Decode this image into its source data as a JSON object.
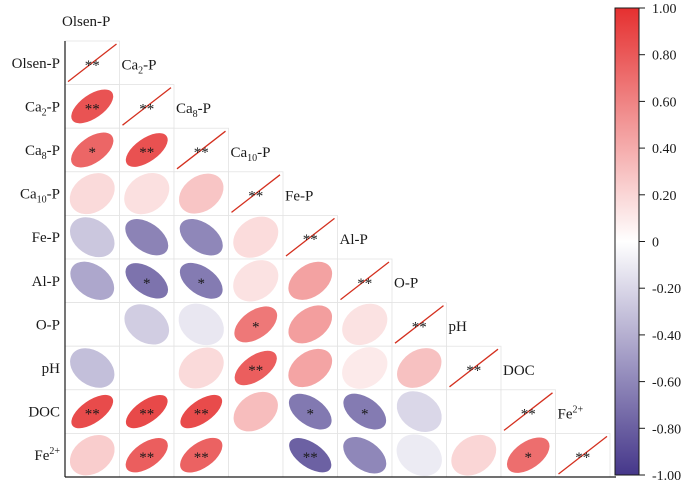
{
  "chart_data": {
    "type": "heatmap",
    "title": "",
    "variables": [
      {
        "label": "Olsen-P",
        "base": "Olsen-P",
        "sub": "",
        "sup": ""
      },
      {
        "label": "Ca2-P",
        "base": "Ca",
        "sub": "2",
        "sup": "",
        "tail": "-P"
      },
      {
        "label": "Ca8-P",
        "base": "Ca",
        "sub": "8",
        "sup": "",
        "tail": "-P"
      },
      {
        "label": "Ca10-P",
        "base": "Ca",
        "sub": "10",
        "sup": "",
        "tail": "-P"
      },
      {
        "label": "Fe-P",
        "base": "Fe-P",
        "sub": "",
        "sup": ""
      },
      {
        "label": "Al-P",
        "base": "Al-P",
        "sub": "",
        "sup": ""
      },
      {
        "label": "O-P",
        "base": "O-P",
        "sub": "",
        "sup": ""
      },
      {
        "label": "pH",
        "base": "pH",
        "sub": "",
        "sup": ""
      },
      {
        "label": "DOC",
        "base": "DOC",
        "sub": "",
        "sup": ""
      },
      {
        "label": "Fe2+",
        "base": "Fe",
        "sub": "",
        "sup": "2+"
      }
    ],
    "lower_triangle": [
      [
        1.0
      ],
      [
        0.83,
        1.0
      ],
      [
        0.74,
        0.84,
        1.0
      ],
      [
        0.18,
        0.15,
        0.28,
        1.0
      ],
      [
        -0.28,
        -0.62,
        -0.6,
        0.17,
        1.0
      ],
      [
        -0.44,
        -0.7,
        -0.66,
        0.14,
        0.45,
        1.0
      ],
      [
        0.0,
        -0.25,
        -0.12,
        0.65,
        0.47,
        0.14,
        1.0
      ],
      [
        -0.32,
        0.0,
        0.18,
        0.78,
        0.44,
        0.1,
        0.3,
        1.0
      ],
      [
        0.87,
        0.88,
        0.87,
        0.32,
        -0.67,
        -0.66,
        -0.2,
        0.0,
        1.0
      ],
      [
        0.24,
        0.78,
        0.76,
        0.0,
        -0.79,
        -0.6,
        -0.1,
        0.2,
        0.7,
        1.0
      ]
    ],
    "significance": [
      [
        "**"
      ],
      [
        "**",
        "**"
      ],
      [
        "*",
        "**",
        "**"
      ],
      [
        "",
        "",
        "",
        "**"
      ],
      [
        "",
        "",
        "",
        "",
        "**"
      ],
      [
        "",
        "*",
        "*",
        "",
        "",
        "**"
      ],
      [
        "",
        "",
        "",
        "*",
        "",
        "",
        "**"
      ],
      [
        "",
        "",
        "",
        "**",
        "",
        "",
        "",
        "**"
      ],
      [
        "**",
        "**",
        "**",
        "",
        "*",
        "*",
        "",
        "",
        "**"
      ],
      [
        "",
        "**",
        "**",
        "",
        "**",
        "",
        "",
        "",
        "*",
        "**"
      ]
    ],
    "colorbar": {
      "ticks": [
        "1.00",
        "0.80",
        "0.60",
        "0.40",
        "0.20",
        "0",
        "-0.20",
        "-0.40",
        "-0.60",
        "-0.80",
        "-1.00"
      ],
      "range": [
        -1,
        1
      ],
      "colors": {
        "negative": "#45378a",
        "zero": "#ffffff",
        "positive": "#e53030"
      }
    },
    "diagonal_line_color": "#d4301f"
  }
}
